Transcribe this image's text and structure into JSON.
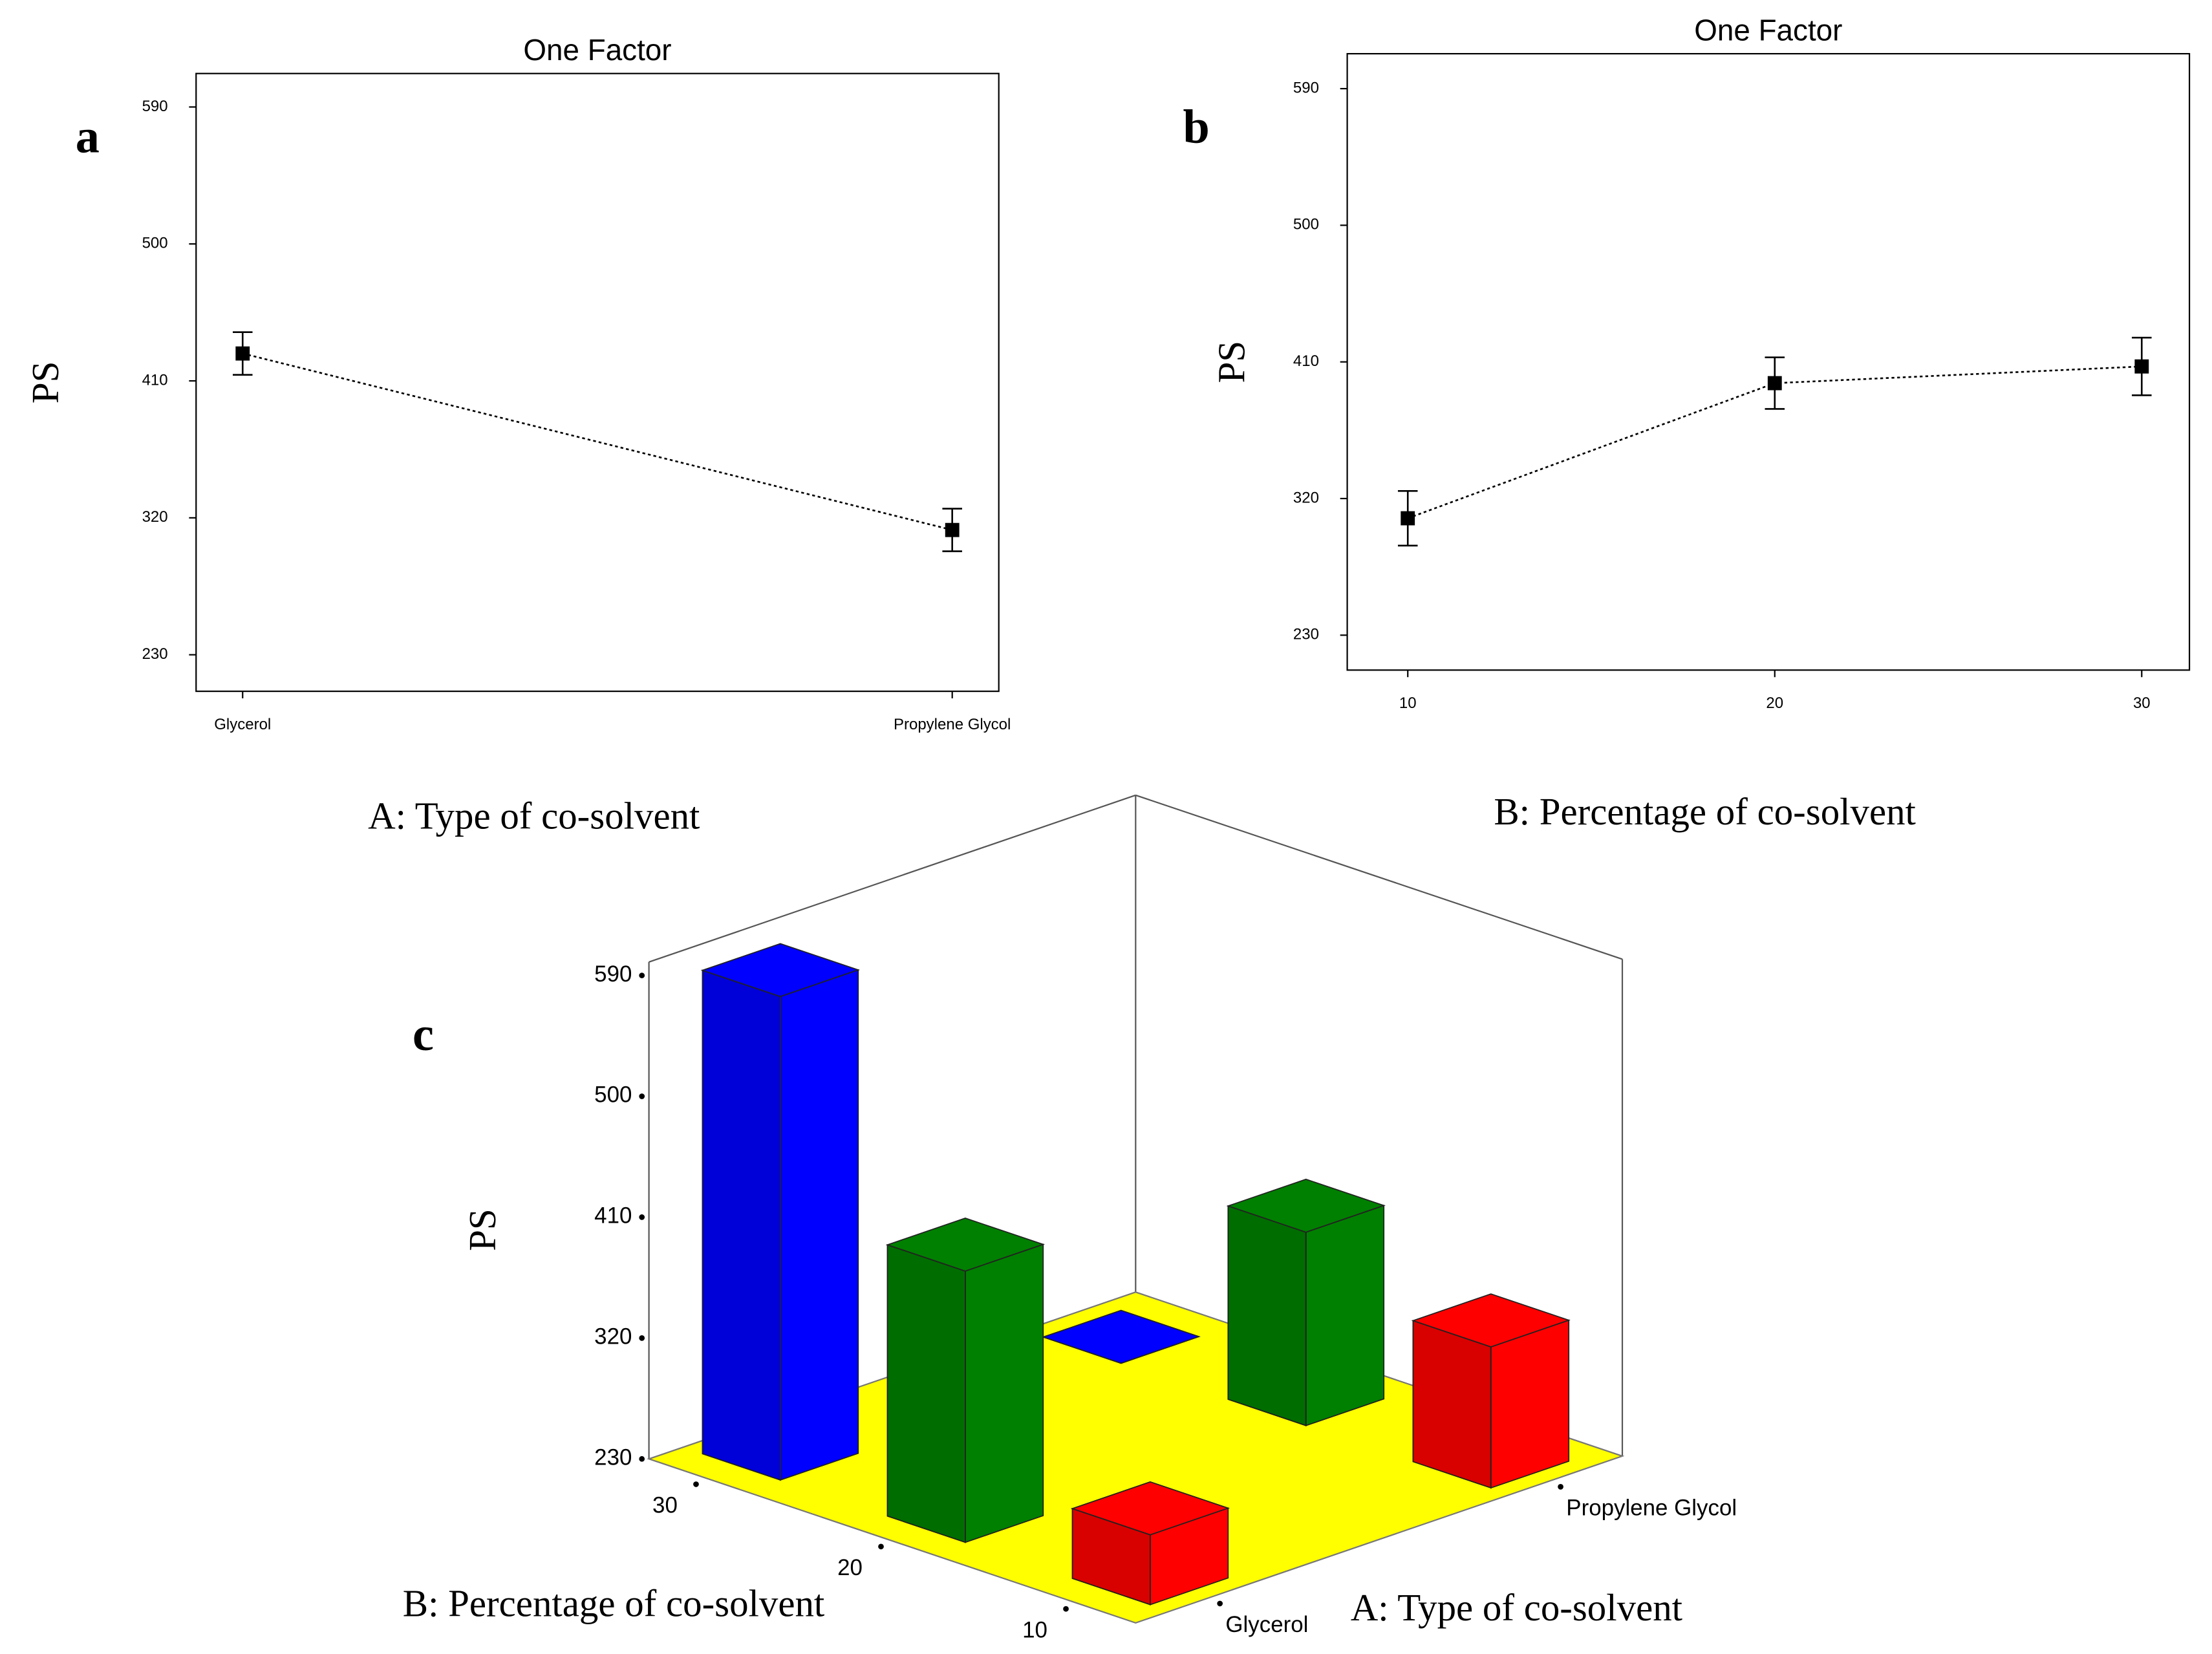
{
  "chart_data": [
    {
      "type": "line",
      "panel": "a",
      "title": "One Factor",
      "ylabel": "PS",
      "xlabel": "A: Type of co-solvent",
      "categories": [
        "Glycerol",
        "Propylene Glycol"
      ],
      "values": [
        428,
        312
      ],
      "errors": [
        14,
        14
      ],
      "color": "#000000",
      "ylim": [
        206,
        612
      ],
      "yticks": [
        230,
        320,
        410,
        500,
        590
      ],
      "grid": false
    },
    {
      "type": "line",
      "panel": "b",
      "title": "One Factor",
      "ylabel": "PS",
      "xlabel": "B: Percentage  of co-solvent",
      "x": [
        10,
        20,
        30
      ],
      "values": [
        307,
        396,
        407
      ],
      "errors": [
        18,
        17,
        19
      ],
      "color": "#000000",
      "xlim": [
        8.35,
        31.3
      ],
      "xticks": [
        10,
        20,
        30
      ],
      "ylim": [
        207,
        613
      ],
      "yticks": [
        230,
        320,
        410,
        500,
        590
      ],
      "grid": false
    },
    {
      "type": "bar3d",
      "panel": "c",
      "zlabel": "PS",
      "xlabel": "A: Type of co-solvent",
      "ylabel": "B: Percentage  of co-solvent",
      "x_categories": [
        "Glycerol",
        "Propylene Glycol"
      ],
      "y_categories": [
        "10",
        "20",
        "30"
      ],
      "values": [
        [
          282,
          432,
          590
        ],
        [
          335,
          374,
          230
        ]
      ],
      "colors": [
        "#ff0000",
        "#008000",
        "#0000ff"
      ],
      "floor_color": "#ffff00",
      "zlim": [
        230,
        600
      ],
      "zticks": [
        230,
        320,
        410,
        500,
        590
      ]
    }
  ]
}
